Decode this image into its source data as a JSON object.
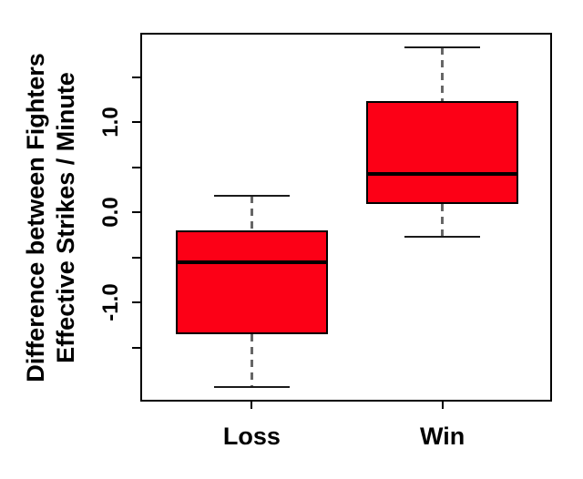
{
  "chart_data": {
    "type": "boxplot",
    "title": "",
    "xlabel": "",
    "ylabel_lines": [
      "Difference between Fighters",
      "Effective Strikes / Minute"
    ],
    "categories": [
      "Loss",
      "Win"
    ],
    "series": [
      {
        "name": "Loss",
        "whisker_low": -1.94,
        "q1": -1.35,
        "median": -0.55,
        "q3": -0.2,
        "whisker_high": 0.18
      },
      {
        "name": "Win",
        "whisker_low": -0.27,
        "q1": 0.09,
        "median": 0.42,
        "q3": 1.23,
        "whisker_high": 1.83
      }
    ],
    "y_axis": {
      "range": [
        -2.1,
        1.98
      ],
      "tick_values": [
        1.5,
        1.0,
        0.5,
        0.0,
        -0.5,
        -1.0,
        -1.5
      ],
      "labeled_ticks": [
        {
          "value": 1.0,
          "label": "1.0"
        },
        {
          "value": 0.0,
          "label": "0.0"
        },
        {
          "value": -1.0,
          "label": "-1.0"
        }
      ]
    },
    "x_axis": {
      "range": [
        0.42,
        2.58
      ],
      "category_positions": [
        1,
        2
      ]
    },
    "style": {
      "box_fill": "#fc0016",
      "box_border": "#000000",
      "median_color": "#000000",
      "whisker_color": "#666666",
      "cap_color": "#1a1a1a",
      "frame_color": "#000000",
      "background": "#ffffff",
      "grid": false,
      "legend": false,
      "whisker_style": "dashed"
    }
  }
}
